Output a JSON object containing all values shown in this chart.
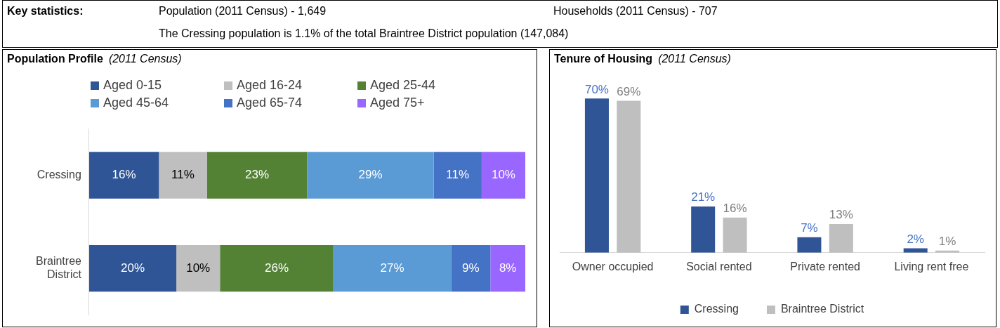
{
  "chart_data": [
    {
      "type": "other",
      "title": "Key statistics:",
      "annotations": [
        "Population (2011 Census) - 1,649",
        "Households (2011 Census) - 707",
        "The Cressing population is 1.1% of the total Braintree District population (147,084)"
      ]
    },
    {
      "type": "bar",
      "orientation": "horizontal",
      "stacked": true,
      "title": "Population Profile",
      "subtitle": "(2011 Census)",
      "legend": "top",
      "categories": [
        "Cressing",
        "Braintree District"
      ],
      "series": [
        {
          "name": "Aged 0-15",
          "color": "#2f5597",
          "values": [
            16,
            20
          ],
          "value_labels": [
            "16%",
            "20%"
          ]
        },
        {
          "name": "Aged 16-24",
          "color": "#bfbfbf",
          "values": [
            11,
            10
          ],
          "value_labels": [
            "11%",
            "10%"
          ]
        },
        {
          "name": "Aged 25-44",
          "color": "#548235",
          "values": [
            23,
            26
          ],
          "value_labels": [
            "23%",
            "26%"
          ]
        },
        {
          "name": "Aged 45-64",
          "color": "#5b9bd5",
          "values": [
            29,
            27
          ],
          "value_labels": [
            "29%",
            "27%"
          ]
        },
        {
          "name": "Aged 65-74",
          "color": "#4472c4",
          "values": [
            11,
            9
          ],
          "value_labels": [
            "11%",
            "9%"
          ]
        },
        {
          "name": "Aged 75+",
          "color": "#9966ff",
          "values": [
            10,
            8
          ],
          "value_labels": [
            "10%",
            "8%"
          ]
        }
      ]
    },
    {
      "type": "bar",
      "title": "Tenure of Housing",
      "subtitle": "(2011 Census)",
      "legend": "bottom",
      "categories": [
        "Owner occupied",
        "Social rented",
        "Private rented",
        "Living rent free"
      ],
      "series": [
        {
          "name": "Cressing",
          "color": "#2f5597",
          "values": [
            70,
            21,
            7,
            2
          ],
          "value_labels": [
            "70%",
            "21%",
            "7%",
            "2%"
          ]
        },
        {
          "name": "Braintree District",
          "color": "#bfbfbf",
          "values": [
            69,
            16,
            13,
            1
          ],
          "value_labels": [
            "69%",
            "16%",
            "13%",
            "1%"
          ]
        }
      ]
    }
  ]
}
